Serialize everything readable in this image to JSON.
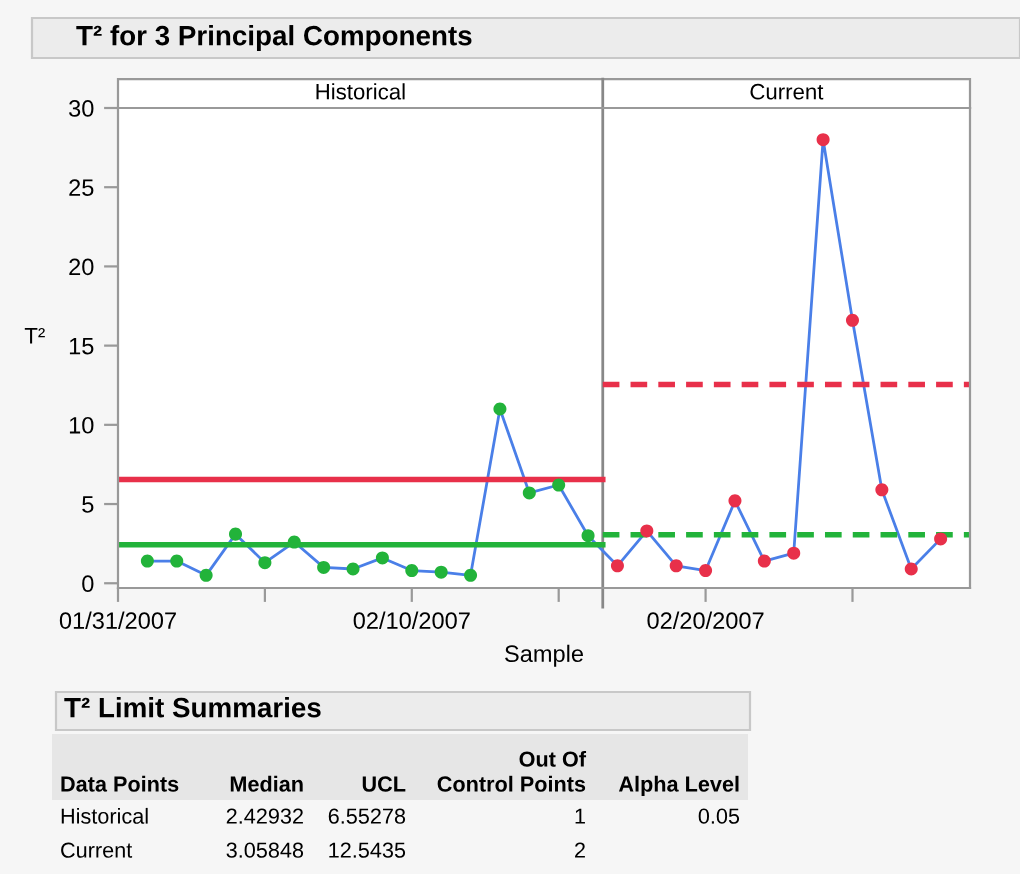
{
  "chart_data": {
    "type": "line",
    "title": "T² for 3 Principal Components",
    "ylabel": "T²",
    "xlabel": "Sample",
    "series": [
      {
        "color": "#4a7fe8",
        "marker": "circle",
        "colors": [
          "#22b33a",
          "#22b33a",
          "#22b33a",
          "#22b33a",
          "#22b33a",
          "#22b33a",
          "#22b33a",
          "#22b33a",
          "#22b33a",
          "#22b33a",
          "#22b33a",
          "#22b33a",
          "#22b33a",
          "#22b33a",
          "#22b33a",
          "#22b33a",
          "#e8304a",
          "#e8304a",
          "#e8304a",
          "#e8304a",
          "#e8304a",
          "#e8304a",
          "#e8304a",
          "#e8304a",
          "#e8304a",
          "#e8304a",
          "#e8304a",
          "#e8304a"
        ],
        "x": [
          "2007-02-01",
          "2007-02-02",
          "2007-02-03",
          "2007-02-04",
          "2007-02-05",
          "2007-02-06",
          "2007-02-07",
          "2007-02-08",
          "2007-02-09",
          "2007-02-10",
          "2007-02-11",
          "2007-02-12",
          "2007-02-13",
          "2007-02-14",
          "2007-02-15",
          "2007-02-16",
          "2007-02-17",
          "2007-02-18",
          "2007-02-19",
          "2007-02-20",
          "2007-02-21",
          "2007-02-22",
          "2007-02-23",
          "2007-02-24",
          "2007-02-25",
          "2007-02-26",
          "2007-02-27",
          "2007-02-28"
        ],
        "values": [
          1.4,
          1.4,
          0.5,
          3.1,
          1.3,
          2.6,
          1.0,
          0.9,
          1.6,
          0.8,
          0.7,
          0.5,
          11.0,
          5.7,
          6.2,
          3.0,
          1.1,
          3.3,
          1.1,
          0.8,
          5.2,
          1.4,
          1.9,
          28.0,
          16.6,
          5.9,
          0.9,
          2.8
        ]
      },
      {
        "color": "#e8304a",
        "line_style": "solid",
        "marker": "none",
        "x": [
          "2007-01-31",
          "2007-02-16T12:00"
        ],
        "values": [
          6.55278,
          6.55278
        ]
      },
      {
        "color": "#22b33a",
        "line_style": "solid",
        "marker": "none",
        "x": [
          "2007-01-31",
          "2007-02-16T12:00"
        ],
        "values": [
          2.42932,
          2.42932
        ]
      },
      {
        "color": "#e8304a",
        "line_style": "dashed",
        "marker": "none",
        "x": [
          "2007-02-16T12:00",
          "2007-03-01"
        ],
        "values": [
          12.5435,
          12.5435
        ]
      },
      {
        "color": "#22b33a",
        "line_style": "dashed",
        "marker": "none",
        "x": [
          "2007-02-16T12:00",
          "2007-03-01"
        ],
        "values": [
          3.05848,
          3.05848
        ]
      }
    ],
    "ref_lines": [
      {
        "axis": "x",
        "value": "2007-02-16T12:00",
        "color": "#888888",
        "line_style": "solid"
      }
    ],
    "xlim": [
      "2007-01-31",
      "2007-03-01"
    ],
    "xticks": [
      {
        "value": "2007-01-31",
        "label": "01/31/2007"
      },
      {
        "value": "2007-02-05",
        "label": null
      },
      {
        "value": "2007-02-10",
        "label": "02/10/2007"
      },
      {
        "value": "2007-02-15",
        "label": null
      },
      {
        "value": "2007-02-20",
        "label": "02/20/2007"
      },
      {
        "value": "2007-02-25",
        "label": null
      }
    ],
    "ylim": [
      -0.3,
      30
    ],
    "yticks": [
      0,
      5,
      10,
      15,
      20,
      25,
      30
    ],
    "grid": false,
    "legend": false,
    "annotations": [
      "Historical",
      "Current",
      "T² Limit Summaries",
      "Data Points",
      "Median",
      "UCL",
      "Out Of\nControl Points",
      "Alpha Level",
      "Historical",
      "2.42932",
      "6.55278",
      "1",
      "0.05",
      "Current",
      "3.05848",
      "12.5435",
      "2",
      null
    ]
  }
}
